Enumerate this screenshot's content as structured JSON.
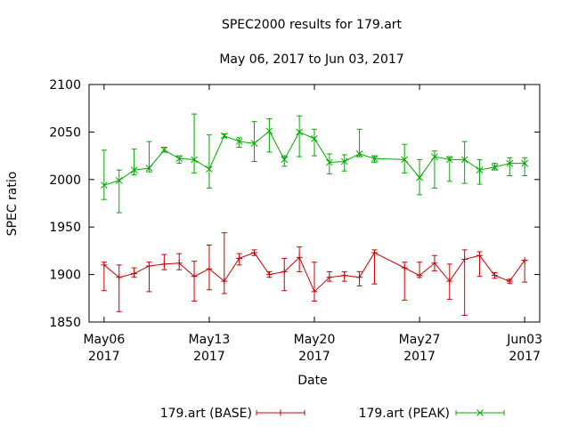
{
  "chart_data": {
    "type": "line",
    "title": "SPEC2000 results for 179.art",
    "subtitle": "May 06, 2017 to Jun 03, 2017",
    "xlabel": "Date",
    "ylabel": "SPEC ratio",
    "ylim": [
      1850,
      2100
    ],
    "yticks": [
      1850,
      1900,
      1950,
      2000,
      2050,
      2100
    ],
    "xlim": [
      "2017-05-05",
      "2017-06-04"
    ],
    "xticks": [
      {
        "date": "2017-05-06",
        "line1": "May06",
        "line2": "2017"
      },
      {
        "date": "2017-05-13",
        "line1": "May13",
        "line2": "2017"
      },
      {
        "date": "2017-05-20",
        "line1": "May20",
        "line2": "2017"
      },
      {
        "date": "2017-05-27",
        "line1": "May27",
        "line2": "2017"
      },
      {
        "date": "2017-06-03",
        "line1": "Jun03",
        "line2": "2017"
      }
    ],
    "grid": false,
    "legend_position": "bottom",
    "x": [
      "2017-05-06",
      "2017-05-07",
      "2017-05-08",
      "2017-05-09",
      "2017-05-10",
      "2017-05-11",
      "2017-05-12",
      "2017-05-13",
      "2017-05-14",
      "2017-05-15",
      "2017-05-16",
      "2017-05-17",
      "2017-05-18",
      "2017-05-19",
      "2017-05-20",
      "2017-05-21",
      "2017-05-22",
      "2017-05-23",
      "2017-05-24",
      "2017-05-26",
      "2017-05-27",
      "2017-05-28",
      "2017-05-29",
      "2017-05-30",
      "2017-05-31",
      "2017-06-01",
      "2017-06-02",
      "2017-06-03"
    ],
    "series": [
      {
        "name": "179.art (BASE)",
        "color": "#cc0000",
        "marker": "plus",
        "values": [
          1910,
          1897,
          1901,
          1909,
          1911,
          1912,
          1898,
          1906,
          1893,
          1917,
          1923,
          1900,
          1903,
          1918,
          1882,
          1897,
          1899,
          1897,
          1923,
          1907,
          1899,
          1912,
          1893,
          1916,
          1920,
          1899,
          1893,
          1915
        ],
        "err_low": [
          1883,
          1861,
          1897,
          1882,
          1905,
          1905,
          1872,
          1884,
          1880,
          1910,
          1920,
          1897,
          1883,
          1903,
          1872,
          1893,
          1893,
          1888,
          1890,
          1873,
          1897,
          1904,
          1874,
          1857,
          1898,
          1896,
          1891,
          1892
        ],
        "err_high": [
          1913,
          1910,
          1907,
          1913,
          1921,
          1922,
          1914,
          1931,
          1944,
          1922,
          1926,
          1903,
          1917,
          1929,
          1913,
          1903,
          1903,
          1903,
          1926,
          1913,
          1913,
          1920,
          1911,
          1926,
          1924,
          1902,
          1895,
          1915
        ]
      },
      {
        "name": "179.art (PEAK)",
        "color": "#00aa00",
        "marker": "cross",
        "values": [
          1994,
          1999,
          2010,
          2012,
          2031,
          2022,
          2021,
          2011,
          2046,
          2040,
          2038,
          2051,
          2021,
          2050,
          2043,
          2018,
          2019,
          2027,
          2022,
          2021,
          2002,
          2024,
          2021,
          2021,
          2010,
          2013,
          2017,
          2017
        ],
        "err_low": [
          1979,
          1965,
          2005,
          2008,
          2029,
          2017,
          2007,
          1991,
          2044,
          2034,
          2019,
          2029,
          2014,
          2024,
          2025,
          2006,
          2009,
          2024,
          2018,
          2007,
          1984,
          1991,
          1998,
          1996,
          1995,
          2010,
          2004,
          2004
        ],
        "err_high": [
          2031,
          2010,
          2032,
          2040,
          2034,
          2025,
          2069,
          2047,
          2048,
          2044,
          2061,
          2064,
          2025,
          2067,
          2053,
          2027,
          2026,
          2053,
          2025,
          2037,
          2021,
          2030,
          2024,
          2040,
          2021,
          2017,
          2023,
          2023
        ]
      }
    ]
  }
}
